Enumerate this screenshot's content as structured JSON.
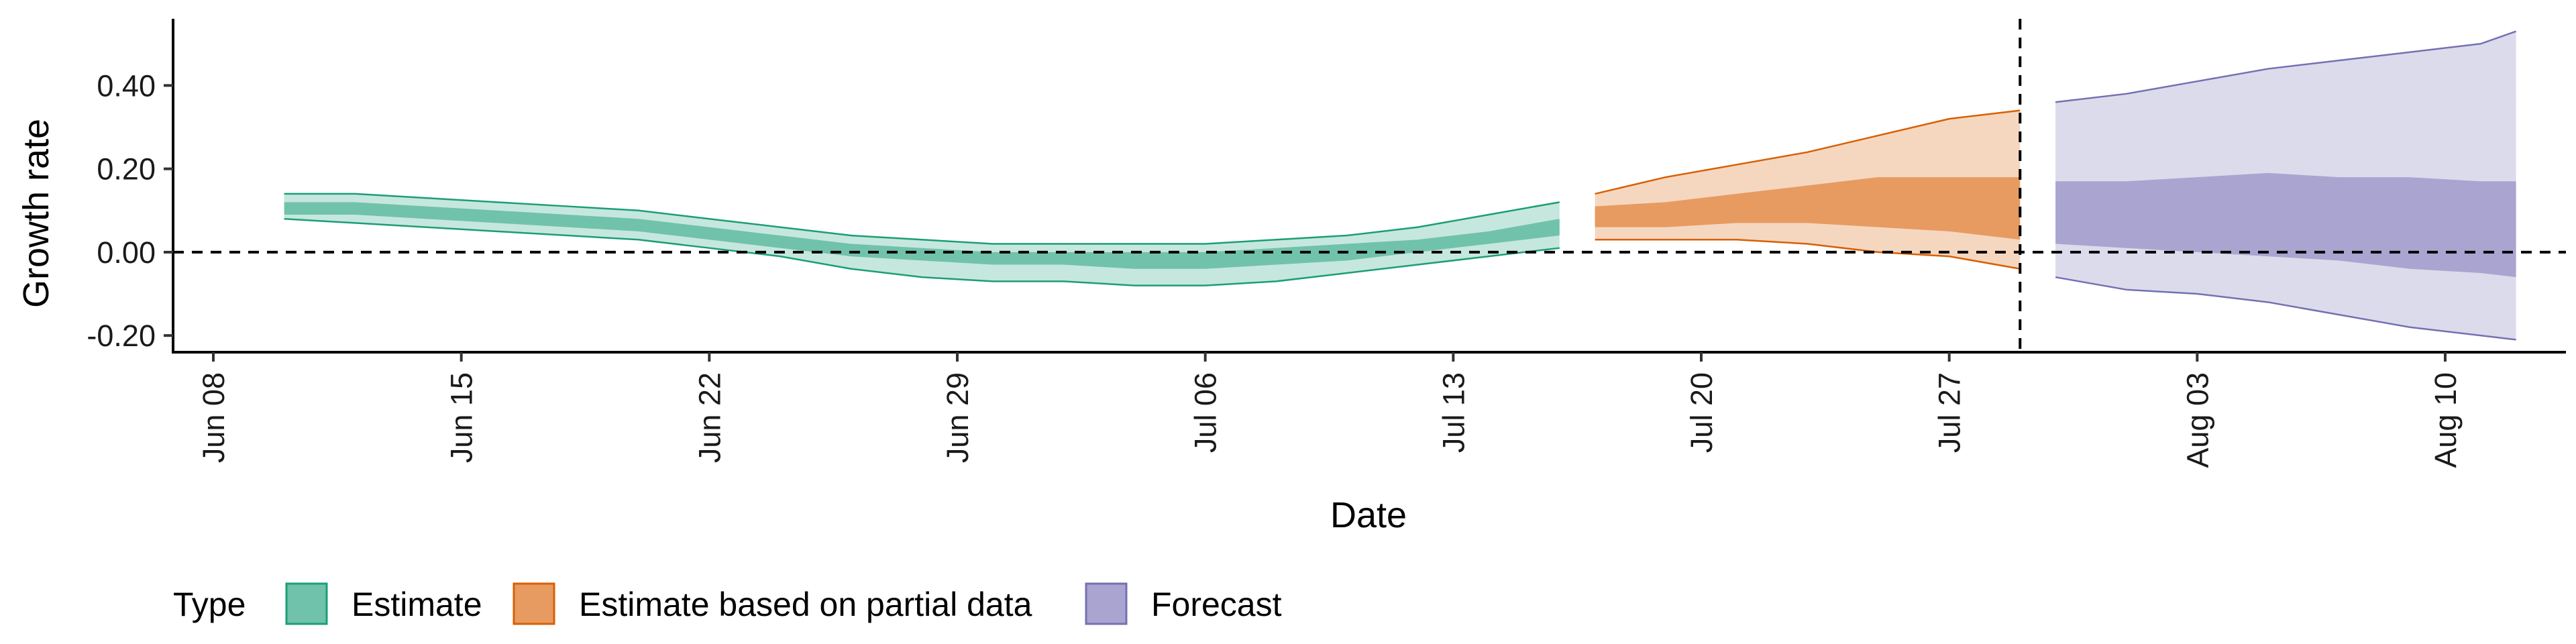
{
  "chart_data": {
    "type": "area",
    "xlabel": "Date",
    "ylabel": "Growth rate",
    "x_tick_labels": [
      "Jun 08",
      "Jun 15",
      "Jun 22",
      "Jun 29",
      "Jul 06",
      "Jul 13",
      "Jul 20",
      "Jul 27",
      "Aug 03",
      "Aug 10"
    ],
    "x_tick_dates": [
      "2020-06-08",
      "2020-06-15",
      "2020-06-22",
      "2020-06-29",
      "2020-07-06",
      "2020-07-13",
      "2020-07-20",
      "2020-07-27",
      "2020-08-03",
      "2020-08-10"
    ],
    "y_tick_labels": [
      "-0.20",
      "0.00",
      "0.20",
      "0.40"
    ],
    "y_ticks": [
      -0.2,
      0.0,
      0.2,
      0.4
    ],
    "xlim": [
      "2020-06-08",
      "2020-08-15"
    ],
    "ylim": [
      -0.24,
      0.56
    ],
    "reference_lines": {
      "horizontal_y": 0.0,
      "vertical_date": "2020-07-29"
    },
    "legend": {
      "title": "Type",
      "position": "bottom"
    },
    "series": [
      {
        "name": "Estimate",
        "color": "#1b9e77",
        "x": [
          "2020-06-10",
          "2020-06-12",
          "2020-06-14",
          "2020-06-16",
          "2020-06-18",
          "2020-06-20",
          "2020-06-22",
          "2020-06-24",
          "2020-06-26",
          "2020-06-28",
          "2020-06-30",
          "2020-07-02",
          "2020-07-04",
          "2020-07-06",
          "2020-07-08",
          "2020-07-10",
          "2020-07-12",
          "2020-07-14",
          "2020-07-16"
        ],
        "outer_upper": [
          0.14,
          0.14,
          0.13,
          0.12,
          0.11,
          0.1,
          0.08,
          0.06,
          0.04,
          0.03,
          0.02,
          0.02,
          0.02,
          0.02,
          0.03,
          0.04,
          0.06,
          0.09,
          0.12
        ],
        "outer_lower": [
          0.08,
          0.07,
          0.06,
          0.05,
          0.04,
          0.03,
          0.01,
          -0.01,
          -0.04,
          -0.06,
          -0.07,
          -0.07,
          -0.08,
          -0.08,
          -0.07,
          -0.05,
          -0.03,
          -0.01,
          0.01
        ],
        "inner_upper": [
          0.12,
          0.12,
          0.11,
          0.1,
          0.09,
          0.08,
          0.06,
          0.04,
          0.02,
          0.01,
          0.0,
          0.0,
          0.0,
          0.0,
          0.01,
          0.02,
          0.03,
          0.05,
          0.08
        ],
        "inner_lower": [
          0.09,
          0.09,
          0.08,
          0.07,
          0.06,
          0.05,
          0.03,
          0.01,
          -0.01,
          -0.02,
          -0.03,
          -0.03,
          -0.04,
          -0.04,
          -0.03,
          -0.02,
          0.0,
          0.02,
          0.04
        ]
      },
      {
        "name": "Estimate based on partial data",
        "color": "#d95f02",
        "x": [
          "2020-07-17",
          "2020-07-19",
          "2020-07-21",
          "2020-07-23",
          "2020-07-25",
          "2020-07-27",
          "2020-07-29"
        ],
        "outer_upper": [
          0.14,
          0.18,
          0.21,
          0.24,
          0.28,
          0.32,
          0.34
        ],
        "outer_lower": [
          0.03,
          0.03,
          0.03,
          0.02,
          0.0,
          -0.01,
          -0.04
        ],
        "inner_upper": [
          0.11,
          0.12,
          0.14,
          0.16,
          0.18,
          0.18,
          0.18
        ],
        "inner_lower": [
          0.06,
          0.06,
          0.07,
          0.07,
          0.06,
          0.05,
          0.03
        ]
      },
      {
        "name": "Forecast",
        "color": "#7570b3",
        "x": [
          "2020-07-30",
          "2020-08-01",
          "2020-08-03",
          "2020-08-05",
          "2020-08-07",
          "2020-08-09",
          "2020-08-11",
          "2020-08-12"
        ],
        "outer_upper": [
          0.36,
          0.38,
          0.41,
          0.44,
          0.46,
          0.48,
          0.5,
          0.53
        ],
        "outer_lower": [
          -0.06,
          -0.09,
          -0.1,
          -0.12,
          -0.15,
          -0.18,
          -0.2,
          -0.21
        ],
        "inner_upper": [
          0.17,
          0.17,
          0.18,
          0.19,
          0.18,
          0.18,
          0.17,
          0.17
        ],
        "inner_lower": [
          0.02,
          0.01,
          0.0,
          -0.01,
          -0.02,
          -0.04,
          -0.05,
          -0.06
        ]
      }
    ]
  }
}
